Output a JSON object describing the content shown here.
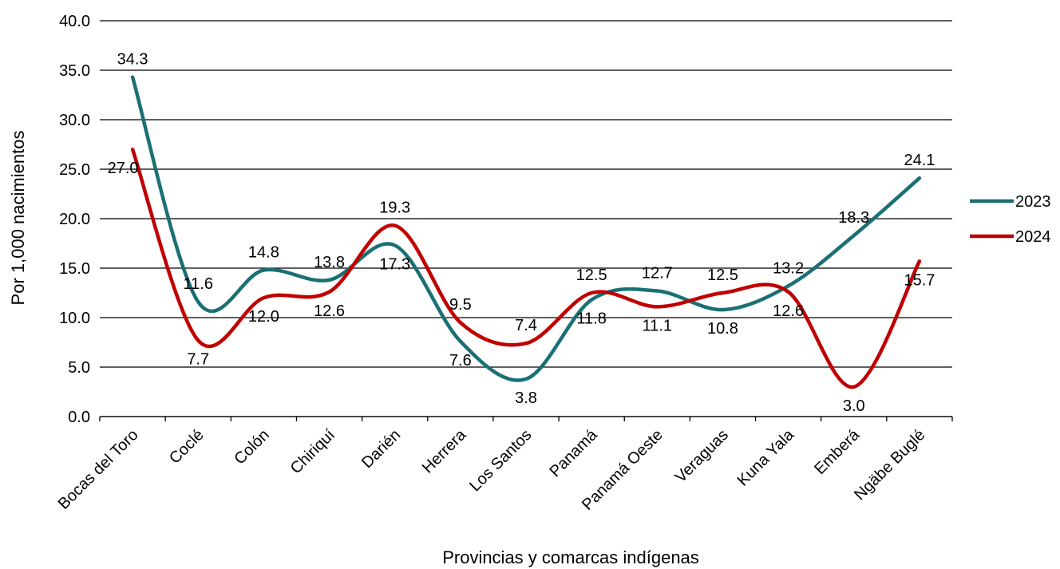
{
  "chart_data": {
    "type": "line",
    "title": "",
    "xlabel": "Provincias y comarcas indígenas",
    "ylabel": "Por 1,000 nacimientos",
    "ylim": [
      0,
      40
    ],
    "yticks": [
      "0.0",
      "5.0",
      "10.0",
      "15.0",
      "20.0",
      "25.0",
      "30.0",
      "35.0",
      "40.0"
    ],
    "grid": "horizontal",
    "legend_position": "right",
    "categories": [
      "Bocas del Toro",
      "Coclé",
      "Colón",
      "Chiriquí",
      "Darién",
      "Herrera",
      "Los Santos",
      "Panamá",
      "Panamá Oeste",
      "Veraguas",
      "Kuna Yala",
      "Emberá",
      "Ngäbe Buglé"
    ],
    "series": [
      {
        "name": "2023",
        "color": "#1a7074",
        "values": [
          34.3,
          11.6,
          14.8,
          13.8,
          17.3,
          7.6,
          3.8,
          11.8,
          12.7,
          10.8,
          13.2,
          18.3,
          24.1
        ],
        "labels": [
          "34.3",
          "11.6",
          "14.8",
          "13.8",
          "17.3",
          "7.6",
          "3.8",
          "11.8",
          "12.7",
          "10.8",
          "13.2",
          "18.3",
          "24.1"
        ]
      },
      {
        "name": "2024",
        "color": "#c00000",
        "values": [
          27.0,
          7.7,
          12.0,
          12.6,
          19.3,
          9.5,
          7.4,
          12.5,
          11.1,
          12.5,
          12.6,
          3.0,
          15.7
        ],
        "labels": [
          "27.0",
          "7.7",
          "12.0",
          "12.6",
          "19.3",
          "9.5",
          "7.4",
          "12.5",
          "11.1",
          "12.5",
          "12.6",
          "3.0",
          "15.7"
        ]
      }
    ]
  }
}
